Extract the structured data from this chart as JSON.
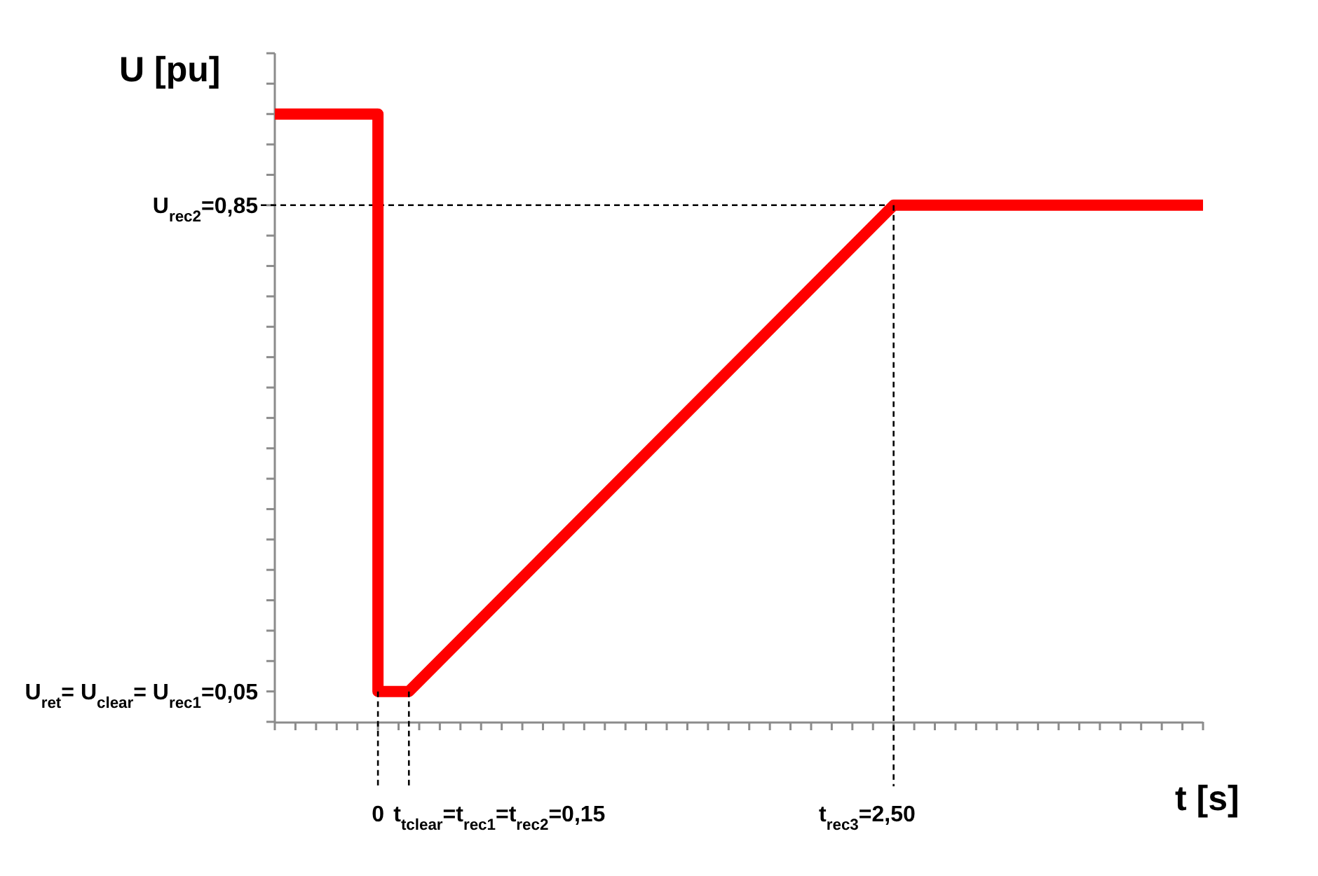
{
  "chart_data": {
    "type": "line",
    "xlabel": "t [s]",
    "ylabel": "U [pu]",
    "x": [
      -0.5,
      0,
      0,
      0.15,
      2.5,
      4.0
    ],
    "values": [
      1.0,
      1.0,
      0.05,
      0.05,
      0.85,
      0.85
    ],
    "color": "#ff0000",
    "xlim": [
      -0.5,
      4.0
    ],
    "ylim": [
      0,
      1.1
    ],
    "xticks": [
      {
        "value": -0.5,
        "label": null
      },
      {
        "value": -0.4,
        "label": null
      },
      {
        "value": -0.3,
        "label": null
      },
      {
        "value": -0.2,
        "label": null
      },
      {
        "value": -0.1,
        "label": null
      },
      0,
      {
        "value": 0.1,
        "label": null
      },
      {
        "value": 0.2,
        "label": null
      },
      {
        "value": 0.3,
        "label": null
      },
      {
        "value": 0.4,
        "label": null
      },
      {
        "value": 0.5,
        "label": null
      },
      {
        "value": 0.6,
        "label": null
      },
      {
        "value": 0.7,
        "label": null
      },
      {
        "value": 0.8,
        "label": null
      },
      {
        "value": 0.9,
        "label": null
      },
      {
        "value": 1.0,
        "label": null
      },
      {
        "value": 1.1,
        "label": null
      },
      {
        "value": 1.2,
        "label": null
      },
      {
        "value": 1.3,
        "label": null
      },
      {
        "value": 1.4,
        "label": null
      },
      {
        "value": 1.5,
        "label": null
      },
      {
        "value": 1.6,
        "label": null
      },
      {
        "value": 1.7,
        "label": null
      },
      {
        "value": 1.8,
        "label": null
      },
      {
        "value": 1.9,
        "label": null
      },
      {
        "value": 2.0,
        "label": null
      },
      {
        "value": 2.1,
        "label": null
      },
      {
        "value": 2.2,
        "label": null
      },
      {
        "value": 2.3,
        "label": null
      },
      {
        "value": 2.4,
        "label": null
      },
      {
        "value": 2.5,
        "label": "2,50"
      },
      {
        "value": 2.6,
        "label": null
      },
      {
        "value": 2.7,
        "label": null
      },
      {
        "value": 2.8,
        "label": null
      },
      {
        "value": 2.9,
        "label": null
      },
      {
        "value": 3.0,
        "label": null
      },
      {
        "value": 3.1,
        "label": null
      },
      {
        "value": 3.2,
        "label": null
      },
      {
        "value": 3.3,
        "label": null
      },
      {
        "value": 3.4,
        "label": null
      },
      {
        "value": 3.5,
        "label": null
      },
      {
        "value": 3.6,
        "label": null
      },
      {
        "value": 3.7,
        "label": null
      },
      {
        "value": 3.8,
        "label": null
      },
      {
        "value": 3.9,
        "label": null
      },
      {
        "value": 4.0,
        "label": null
      }
    ],
    "yticks": [
      {
        "value": 0,
        "label": null
      },
      {
        "value": 0.05,
        "label": "0,05"
      },
      {
        "value": 0.1,
        "label": null
      },
      {
        "value": 0.15,
        "label": null
      },
      {
        "value": 0.2,
        "label": null
      },
      {
        "value": 0.25,
        "label": null
      },
      {
        "value": 0.3,
        "label": null
      },
      {
        "value": 0.35,
        "label": null
      },
      {
        "value": 0.4,
        "label": null
      },
      {
        "value": 0.45,
        "label": null
      },
      {
        "value": 0.5,
        "label": null
      },
      {
        "value": 0.55,
        "label": null
      },
      {
        "value": 0.6,
        "label": null
      },
      {
        "value": 0.65,
        "label": null
      },
      {
        "value": 0.7,
        "label": null
      },
      {
        "value": 0.75,
        "label": null
      },
      {
        "value": 0.8,
        "label": null
      },
      {
        "value": 0.85,
        "label": "0,85"
      },
      {
        "value": 0.9,
        "label": null
      },
      {
        "value": 0.95,
        "label": null
      },
      {
        "value": 1.0,
        "label": null
      },
      {
        "value": 1.05,
        "label": null
      },
      {
        "value": 1.1,
        "label": null
      }
    ],
    "ref_lines": [
      {
        "axis": "y",
        "value": 0.85,
        "color": "#000000",
        "line_style": "dashed"
      }
    ],
    "annotations": [
      "U$_{ret}$= U$_{clear}$= U$_{rec1}$=",
      "U$_{rec2}$=",
      {
        "text": "t$_{tclear}$=t$_{rec1}$=t$_{rec2}$=0,15",
        "x": 0.15,
        "y": 0.05
      },
      "t$_{rec3}$="
    ]
  }
}
